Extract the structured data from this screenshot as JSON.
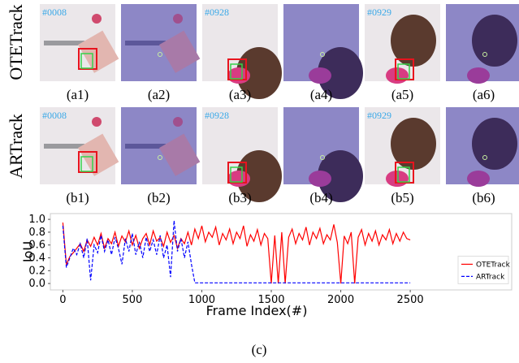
{
  "rows": [
    {
      "label": "OTETrack",
      "panels": [
        {
          "caption": "(a1)",
          "frame": "#0008"
        },
        {
          "caption": "(a2)"
        },
        {
          "caption": "(a3)",
          "frame": "#0928"
        },
        {
          "caption": "(a4)"
        },
        {
          "caption": "(a5)",
          "frame": "#0929"
        },
        {
          "caption": "(a6)"
        }
      ]
    },
    {
      "label": "ARTrack",
      "panels": [
        {
          "caption": "(b1)",
          "frame": "#0008"
        },
        {
          "caption": "(b2)"
        },
        {
          "caption": "(b3)",
          "frame": "#0928"
        },
        {
          "caption": "(b4)"
        },
        {
          "caption": "(b5)",
          "frame": "#0929"
        },
        {
          "caption": "(b6)"
        }
      ]
    }
  ],
  "caption": "(c)",
  "chart_data": {
    "type": "line",
    "xlabel": "Frame Index(#)",
    "ylabel": "IoU",
    "legend": "right",
    "xlim": [
      -90,
      3230
    ],
    "ylim": [
      -0.1,
      1.09
    ],
    "xticks": [
      0,
      500,
      1000,
      1500,
      2000,
      2500
    ],
    "yticks": [
      {
        "value": 0,
        "label": "0.0"
      },
      0.2,
      0.4,
      0.6,
      0.8,
      {
        "value": 1,
        "label": "1.0"
      }
    ],
    "x": [
      0,
      25,
      50,
      75,
      100,
      125,
      150,
      175,
      200,
      225,
      250,
      275,
      300,
      325,
      350,
      375,
      400,
      425,
      450,
      475,
      500,
      525,
      550,
      575,
      600,
      625,
      650,
      675,
      700,
      725,
      750,
      775,
      800,
      825,
      850,
      875,
      900,
      925,
      950,
      975,
      1000,
      1025,
      1050,
      1075,
      1100,
      1125,
      1150,
      1175,
      1200,
      1225,
      1250,
      1275,
      1300,
      1325,
      1350,
      1375,
      1400,
      1425,
      1450,
      1475,
      1500,
      1525,
      1550,
      1575,
      1600,
      1625,
      1650,
      1675,
      1700,
      1725,
      1750,
      1775,
      1800,
      1825,
      1850,
      1875,
      1900,
      1925,
      1950,
      1975,
      2000,
      2025,
      2050,
      2075,
      2100,
      2125,
      2150,
      2175,
      2200,
      2225,
      2250,
      2275,
      2300,
      2325,
      2350,
      2375,
      2400,
      2425,
      2450,
      2475,
      2500
    ],
    "series": [
      {
        "name": "OTETrack",
        "color": "#ff0000",
        "dash": false,
        "values": [
          0.95,
          0.3,
          0.42,
          0.48,
          0.55,
          0.62,
          0.5,
          0.68,
          0.58,
          0.72,
          0.6,
          0.78,
          0.55,
          0.7,
          0.62,
          0.8,
          0.58,
          0.74,
          0.65,
          0.82,
          0.6,
          0.75,
          0.55,
          0.7,
          0.78,
          0.6,
          0.82,
          0.66,
          0.72,
          0.58,
          0.8,
          0.64,
          0.75,
          0.55,
          0.7,
          0.62,
          0.8,
          0.6,
          0.85,
          0.7,
          0.9,
          0.65,
          0.8,
          0.72,
          0.88,
          0.6,
          0.78,
          0.68,
          0.85,
          0.62,
          0.8,
          0.7,
          0.9,
          0.58,
          0.76,
          0.66,
          0.84,
          0.6,
          0.78,
          0.7,
          0.0,
          0.75,
          0.0,
          0.8,
          0.0,
          0.72,
          0.85,
          0.62,
          0.78,
          0.68,
          0.88,
          0.6,
          0.8,
          0.7,
          0.86,
          0.62,
          0.76,
          0.68,
          0.92,
          0.64,
          0.0,
          0.74,
          0.62,
          0.8,
          0.0,
          0.72,
          0.84,
          0.6,
          0.78,
          0.66,
          0.82,
          0.6,
          0.76,
          0.68,
          0.84,
          0.62,
          0.78,
          0.66,
          0.8,
          0.7,
          0.68
        ]
      },
      {
        "name": "ARTrack",
        "color": "#0000ff",
        "dash": true,
        "values": [
          0.9,
          0.25,
          0.4,
          0.55,
          0.45,
          0.62,
          0.4,
          0.7,
          0.05,
          0.6,
          0.48,
          0.75,
          0.5,
          0.68,
          0.45,
          0.72,
          0.55,
          0.3,
          0.7,
          0.5,
          0.78,
          0.45,
          0.65,
          0.4,
          0.72,
          0.5,
          0.68,
          0.45,
          0.75,
          0.4,
          0.6,
          0.1,
          0.98,
          0.5,
          0.7,
          0.4,
          0.65,
          0.3,
          0.01,
          0.01,
          0.01,
          0.01,
          0.01,
          0.01,
          0.01,
          0.01,
          0.01,
          0.01,
          0.01,
          0.01,
          0.01,
          0.01,
          0.01,
          0.01,
          0.01,
          0.01,
          0.01,
          0.01,
          0.01,
          0.01,
          0.01,
          0.01,
          0.01,
          0.01,
          0.01,
          0.01,
          0.01,
          0.01,
          0.01,
          0.01,
          0.01,
          0.01,
          0.01,
          0.01,
          0.01,
          0.01,
          0.01,
          0.01,
          0.01,
          0.01,
          0.01,
          0.01,
          0.01,
          0.01,
          0.01,
          0.01,
          0.01,
          0.01,
          0.01,
          0.01,
          0.01,
          0.01,
          0.01,
          0.01,
          0.01,
          0.01,
          0.01,
          0.01,
          0.01,
          0.01,
          0.01
        ]
      }
    ]
  }
}
